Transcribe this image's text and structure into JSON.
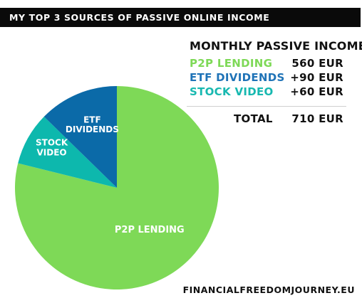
{
  "banner": {
    "title": "MY TOP 3 SOURCES OF PASSIVE ONLINE INCOME"
  },
  "legend": {
    "heading": "MONTHLY PASSIVE INCOME:",
    "rows": [
      {
        "name": "P2P LENDING",
        "amount": "560 EUR",
        "color": "#7ed957"
      },
      {
        "name": "ETF DIVIDENDS",
        "amount": "+90 EUR",
        "color": "#1f73b7"
      },
      {
        "name": "STOCK VIDEO",
        "amount": "+60 EUR",
        "color": "#17b8b0"
      }
    ],
    "total_label": "TOTAL",
    "total_amount": "710 EUR"
  },
  "footer": {
    "site": "FINANCIALFREEDOMJOURNEY.EU"
  },
  "chart_data": {
    "type": "pie",
    "title": "MY TOP 3 SOURCES OF PASSIVE ONLINE INCOME",
    "unit": "EUR",
    "slices": [
      {
        "label": "P2P LENDING",
        "value": 560,
        "color": "#7ed957"
      },
      {
        "label": "STOCK VIDEO",
        "value": 60,
        "color": "#0db8ad"
      },
      {
        "label": "ETF DIVIDENDS",
        "value": 90,
        "color": "#0b6aa8"
      }
    ]
  }
}
